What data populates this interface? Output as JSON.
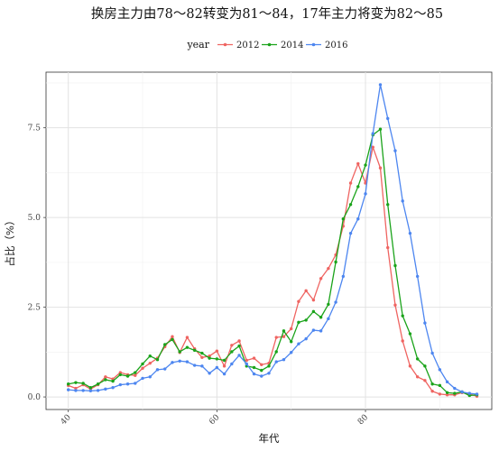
{
  "chart_data": {
    "type": "line",
    "title": "换房主力由78～82转变为81～84，17年主力将变为82～85",
    "xlabel": "年代",
    "ylabel": "占比（%）",
    "xlim": [
      37,
      97
    ],
    "ylim": [
      -0.35,
      9.05
    ],
    "xticks": [
      40,
      60,
      80
    ],
    "xtick_labels": [
      "40",
      "60",
      "80"
    ],
    "yticks": [
      0,
      2.5,
      5,
      7.5
    ],
    "ytick_labels": [
      "0.0",
      "2.5",
      "5.0",
      "7.5"
    ],
    "grid": true,
    "legend": {
      "title": "year",
      "position": "top"
    },
    "series": [
      {
        "name": "2012",
        "color": "#ef6461",
        "x": [
          40,
          41,
          42,
          43,
          44,
          45,
          46,
          47,
          48,
          49,
          50,
          51,
          52,
          53,
          54,
          55,
          56,
          57,
          58,
          59,
          60,
          61,
          62,
          63,
          64,
          65,
          66,
          67,
          68,
          69,
          70,
          71,
          72,
          73,
          74,
          75,
          76,
          77,
          78,
          79,
          80,
          81,
          82,
          83,
          84,
          85,
          86,
          87,
          88,
          89,
          90,
          91,
          92,
          93,
          94,
          95
        ],
        "values": [
          0.32,
          0.24,
          0.34,
          0.22,
          0.34,
          0.56,
          0.5,
          0.68,
          0.62,
          0.6,
          0.8,
          0.94,
          1.08,
          1.4,
          1.68,
          1.24,
          1.66,
          1.34,
          1.1,
          1.14,
          1.28,
          0.86,
          1.44,
          1.56,
          1.02,
          1.08,
          0.9,
          0.94,
          1.66,
          1.68,
          1.9,
          2.66,
          2.96,
          2.7,
          3.3,
          3.58,
          3.96,
          4.76,
          5.96,
          6.5,
          5.96,
          6.96,
          6.38,
          4.16,
          2.56,
          1.56,
          0.86,
          0.56,
          0.46,
          0.16,
          0.08,
          0.06,
          0.06,
          0.12,
          0.08,
          0.02
        ]
      },
      {
        "name": "2014",
        "color": "#1aa31a",
        "x": [
          40,
          41,
          42,
          43,
          44,
          45,
          46,
          47,
          48,
          49,
          50,
          51,
          52,
          53,
          54,
          55,
          56,
          57,
          58,
          59,
          60,
          61,
          62,
          63,
          64,
          65,
          66,
          67,
          68,
          69,
          70,
          71,
          72,
          73,
          74,
          75,
          76,
          77,
          78,
          79,
          80,
          81,
          82,
          83,
          84,
          85,
          86,
          87,
          88,
          89,
          90,
          91,
          92,
          93,
          94,
          95
        ],
        "values": [
          0.36,
          0.4,
          0.38,
          0.26,
          0.36,
          0.48,
          0.44,
          0.62,
          0.58,
          0.68,
          0.92,
          1.14,
          1.04,
          1.46,
          1.6,
          1.26,
          1.38,
          1.3,
          1.22,
          1.08,
          1.06,
          1.02,
          1.26,
          1.42,
          0.86,
          0.82,
          0.74,
          0.86,
          1.26,
          1.84,
          1.54,
          2.08,
          2.14,
          2.38,
          2.22,
          2.58,
          3.76,
          4.96,
          5.36,
          5.86,
          6.46,
          7.3,
          7.46,
          5.36,
          3.66,
          2.26,
          1.76,
          1.06,
          0.86,
          0.36,
          0.32,
          0.12,
          0.1,
          0.14,
          0.04,
          0.06
        ]
      },
      {
        "name": "2016",
        "color": "#4d86f0",
        "x": [
          40,
          41,
          42,
          43,
          44,
          45,
          46,
          47,
          48,
          49,
          50,
          51,
          52,
          53,
          54,
          55,
          56,
          57,
          58,
          59,
          60,
          61,
          62,
          63,
          64,
          65,
          66,
          67,
          68,
          69,
          70,
          71,
          72,
          73,
          74,
          75,
          76,
          77,
          78,
          79,
          80,
          81,
          82,
          83,
          84,
          85,
          86,
          87,
          88,
          89,
          90,
          91,
          92,
          93,
          94,
          95
        ],
        "values": [
          0.2,
          0.18,
          0.18,
          0.17,
          0.18,
          0.22,
          0.26,
          0.34,
          0.36,
          0.38,
          0.52,
          0.56,
          0.76,
          0.78,
          0.96,
          1.0,
          0.98,
          0.88,
          0.86,
          0.66,
          0.82,
          0.64,
          0.92,
          1.16,
          0.92,
          0.64,
          0.58,
          0.66,
          0.98,
          1.04,
          1.24,
          1.48,
          1.62,
          1.86,
          1.84,
          2.18,
          2.64,
          3.36,
          4.56,
          4.96,
          5.66,
          7.34,
          8.7,
          7.76,
          6.86,
          5.46,
          4.56,
          3.36,
          2.06,
          1.22,
          0.76,
          0.42,
          0.24,
          0.14,
          0.1,
          0.08
        ]
      }
    ]
  }
}
